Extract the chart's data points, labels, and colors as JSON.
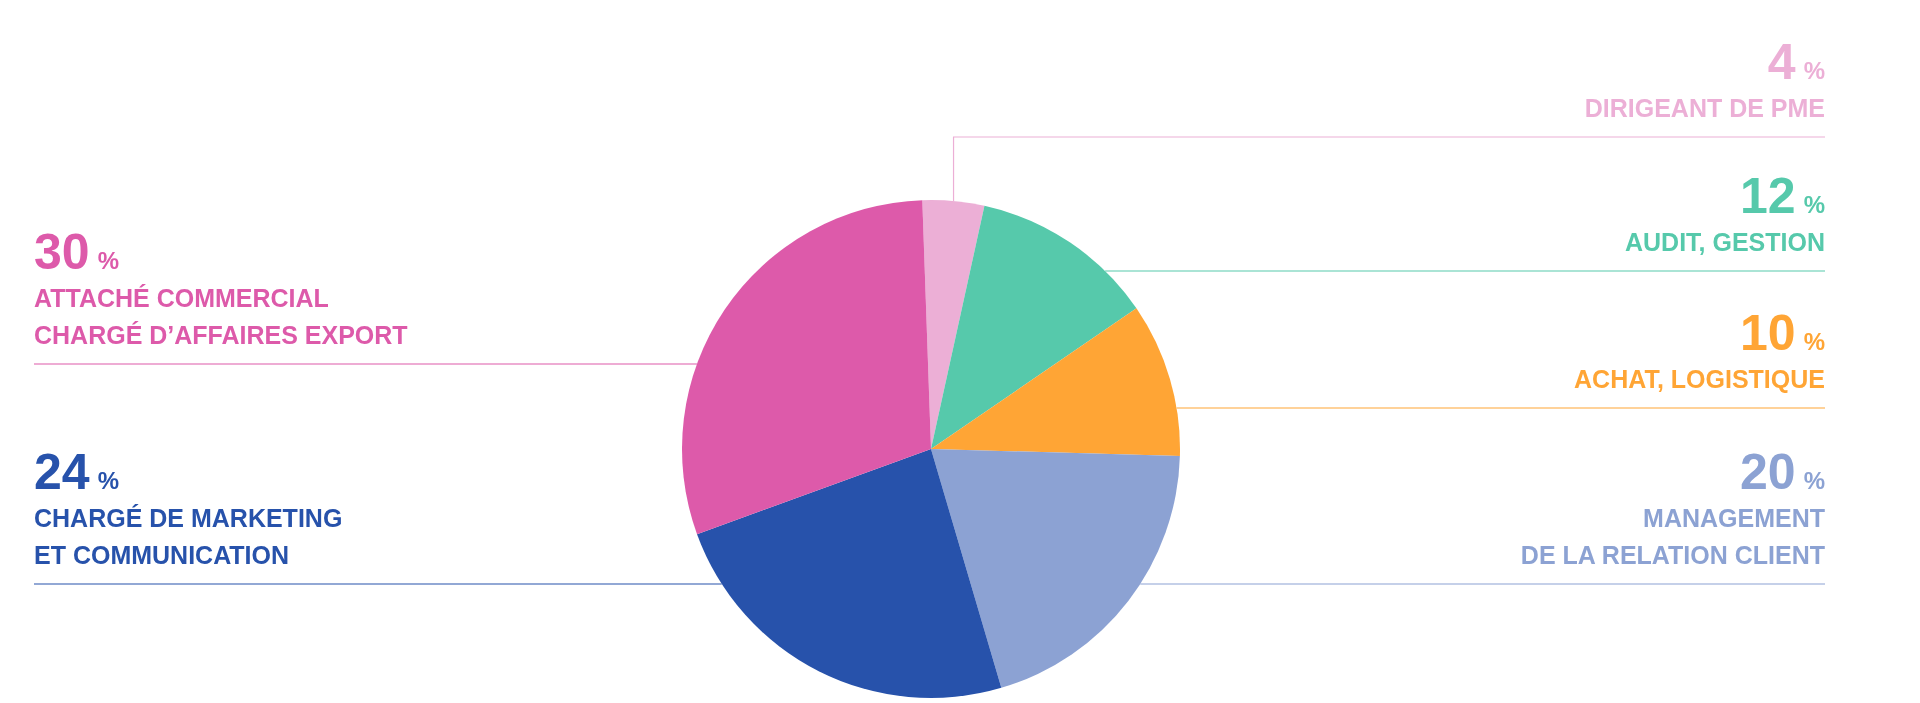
{
  "chart_data": {
    "type": "pie",
    "categories": [
      "DIRIGEANT DE PME",
      "AUDIT, GESTION",
      "ACHAT, LOGISTIQUE",
      "MANAGEMENT\nDE LA RELATION CLIENT",
      "CHARGÉ DE MARKETING\nET COMMUNICATION",
      "ATTACHÉ COMMERCIAL\nCHARGÉ D’AFFAIRES EXPORT"
    ],
    "values": [
      4,
      12,
      10,
      20,
      24,
      30
    ],
    "value_labels": [
      "4 %",
      "12 %",
      "10 %",
      "20 %",
      "24 %",
      "30 %"
    ],
    "colors": [
      "#ecafd6",
      "#56c9ab",
      "#ffa535",
      "#8ca2d3",
      "#2752ab",
      "#dd5aaa"
    ]
  }
}
